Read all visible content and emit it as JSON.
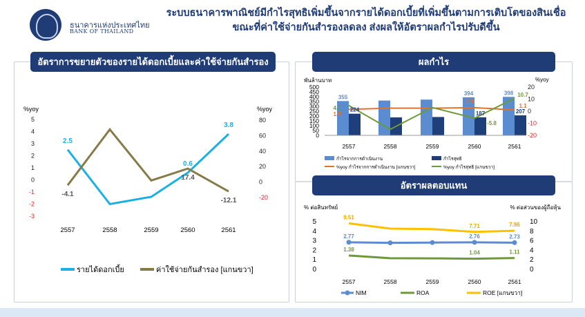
{
  "header": {
    "logo_th": "ธนาคารแห่งประเทศไทย",
    "logo_en": "BANK OF THAILAND",
    "headline_line1": "ระบบธนาคารพาณิชย์มีกำไรสุทธิเพิ่มขึ้นจากรายได้ดอกเบี้ยที่เพิ่มขึ้นตามการเติบโตของสินเชื่อ",
    "headline_line2": "ขณะที่ค่าใช้จ่ายกันสำรองลดลง ส่งผลให้อัตราผลกำไรปรับดีขึ้น"
  },
  "panels": {
    "left_title": "อัตราการขยายตัวของรายได้ดอกเบี้ยและค่าใช้จ่ายกันสำรอง",
    "top_right_title": "ผลกำไร",
    "bottom_right_title": "อัตราผลตอบแทน"
  },
  "colors": {
    "navy": "#1f3c77",
    "interest_income": "#1ab0e6",
    "provision": "#857a48",
    "operating_profit": "#5a8ccf",
    "net_profit": "#1f3f7a",
    "yoy_operating": "#e0722c",
    "yoy_net": "#6d9a36",
    "nim": "#5a8ccf",
    "roa": "#6d9a36",
    "roe": "#ffc000",
    "negative_tick": "#e02020"
  },
  "chart_data": [
    {
      "id": "growth",
      "type": "line",
      "categories": [
        "2557",
        "2558",
        "2559",
        "2560",
        "2561"
      ],
      "left_axis_label": "%yoy",
      "right_axis_label": "%yoy",
      "left_ticks": [
        "5",
        "4",
        "3",
        "2",
        "1",
        "0",
        "-1",
        "-2",
        "-3"
      ],
      "right_ticks": [
        "80",
        "60",
        "40",
        "20",
        "0",
        "-20"
      ],
      "ylim_left": [
        -3,
        5
      ],
      "ylim_right": [
        -20,
        80
      ],
      "series": [
        {
          "name": "รายได้ดอกเบี้ย",
          "axis": "left",
          "values": [
            2.5,
            -2.0,
            -1.4,
            0.6,
            3.8
          ],
          "labels": [
            "2.5",
            "",
            "",
            "0.6",
            "3.8"
          ]
        },
        {
          "name": "ค่าใช้จ่ายกันสำรอง [แกนขวา]",
          "axis": "right",
          "values": [
            -4.1,
            68,
            2,
            17.4,
            -12.1
          ],
          "labels": [
            "-4.1",
            "",
            "",
            "17.4",
            "-12.1"
          ]
        }
      ]
    },
    {
      "id": "profit",
      "type": "bar",
      "categories": [
        "2557",
        "2558",
        "2559",
        "2560",
        "2561"
      ],
      "left_axis_label": "พันล้านบาท",
      "right_axis_label": "%yoy",
      "left_ticks": [
        "500",
        "450",
        "400",
        "350",
        "300",
        "250",
        "200",
        "150",
        "100",
        "50",
        "0"
      ],
      "right_ticks": [
        "20",
        "10",
        "0",
        "-10",
        "-20"
      ],
      "ylim_left": [
        0,
        500
      ],
      "ylim_right": [
        -20,
        20
      ],
      "series": [
        {
          "name": "กำไรจากการดำเนินงาน",
          "kind": "bar",
          "values": [
            355,
            360,
            370,
            394,
            398
          ],
          "labels": [
            "355",
            "",
            "",
            "394",
            "398"
          ]
        },
        {
          "name": "กำไรสุทธิ",
          "kind": "bar",
          "values": [
            224,
            186,
            190,
            187,
            207
          ],
          "labels": [
            "224",
            "",
            "",
            "187",
            "207"
          ]
        },
        {
          "name": "%yoy กำไรจากการดำเนินงาน [แกนขวา]",
          "kind": "line",
          "values": [
            1.5,
            2.5,
            2.5,
            2.9,
            1.1
          ],
          "labels": [
            "1.5",
            "",
            "",
            "2.9",
            "1.1"
          ]
        },
        {
          "name": "%yoy กำไรสุทธิ [แกนขวา]",
          "kind": "line",
          "values": [
            4.7,
            -15,
            3,
            -5.8,
            10.7
          ],
          "labels": [
            "4.7",
            "",
            "",
            "-5.8",
            "10.7"
          ]
        }
      ]
    },
    {
      "id": "returns",
      "type": "line",
      "categories": [
        "2557",
        "2558",
        "2559",
        "2560",
        "2561"
      ],
      "left_axis_label": "% ต่อสินทรัพย์",
      "right_axis_label": "% ต่อส่วนของผู้ถือหุ้น",
      "left_ticks": [
        "5",
        "4",
        "3",
        "2",
        "1",
        "0"
      ],
      "right_ticks": [
        "10",
        "8",
        "6",
        "4",
        "2",
        "0"
      ],
      "ylim_left": [
        0,
        5
      ],
      "ylim_right": [
        0,
        10
      ],
      "series": [
        {
          "name": "NIM",
          "axis": "left",
          "values": [
            2.77,
            2.71,
            2.74,
            2.76,
            2.73
          ],
          "labels": [
            "2.77",
            "",
            "",
            "2.76",
            "2.73"
          ]
        },
        {
          "name": "ROA",
          "axis": "left",
          "values": [
            1.38,
            1.1,
            1.08,
            1.04,
            1.11
          ],
          "labels": [
            "1.38",
            "",
            "",
            "1.04",
            "1.11"
          ]
        },
        {
          "name": "ROE [แกนขวา]",
          "axis": "right",
          "values": [
            9.51,
            8.4,
            8.3,
            7.71,
            7.96
          ],
          "labels": [
            "9.51",
            "",
            "",
            "7.71",
            "7.96"
          ]
        }
      ]
    }
  ]
}
